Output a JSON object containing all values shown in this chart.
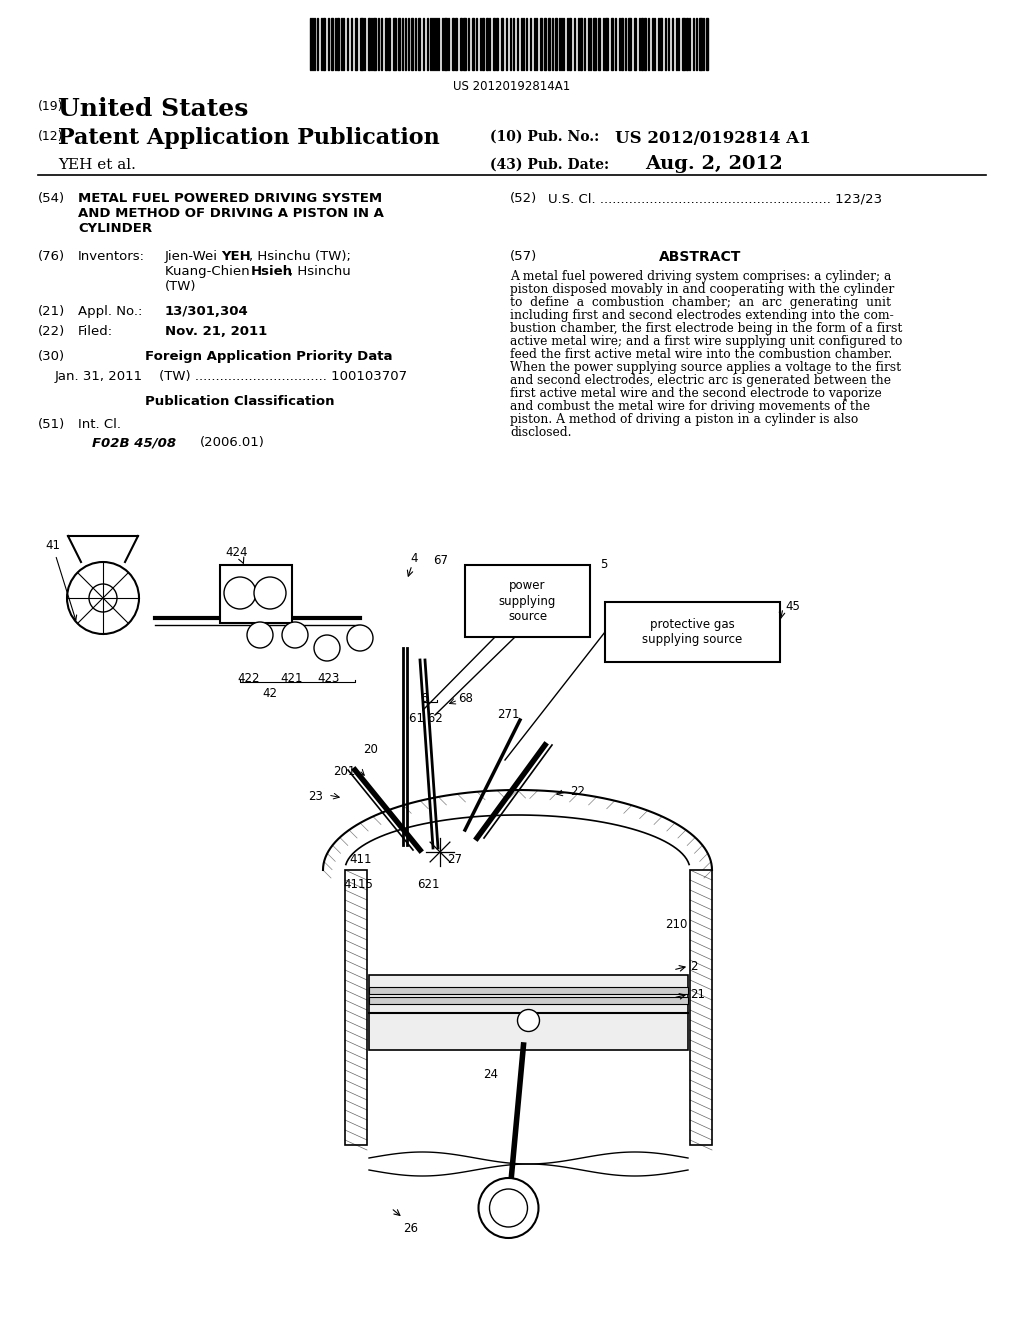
{
  "background_color": "#ffffff",
  "barcode_text": "US 20120192814A1",
  "page_number_label": "(19)",
  "country": "United States",
  "pub_type_label": "(12)",
  "pub_type": "Patent Application Publication",
  "pub_no_label": "(10) Pub. No.:",
  "pub_no": "US 2012/0192814 A1",
  "author": "YEH et al.",
  "pub_date_label": "(43) Pub. Date:",
  "pub_date": "Aug. 2, 2012",
  "title_label": "(54)",
  "title_line1": "METAL FUEL POWERED DRIVING SYSTEM",
  "title_line2": "AND METHOD OF DRIVING A PISTON IN A",
  "title_line3": "CYLINDER",
  "us_cl_label": "(52)",
  "us_cl_text": "U.S. Cl. ........................................................ 123/23",
  "inventors_label": "(76)",
  "inventors_head": "Inventors:",
  "appl_label": "(21)",
  "appl_head": "Appl. No.:",
  "appl_no": "13/301,304",
  "filed_label": "(22)",
  "filed_head": "Filed:",
  "filed_date": "Nov. 21, 2011",
  "foreign_label": "(30)",
  "foreign_title": "Foreign Application Priority Data",
  "foreign_entry": "Jan. 31, 2011    (TW) ................................ 100103707",
  "pub_class_title": "Publication Classification",
  "int_cl_label": "(51)",
  "int_cl_head": "Int. Cl.",
  "int_cl_code": "F02B 45/08",
  "int_cl_year": "(2006.01)",
  "abstract_label": "(57)",
  "abstract_title": "ABSTRACT",
  "abstract_lines": [
    "A metal fuel powered driving system comprises: a cylinder; a",
    "piston disposed movably in and cooperating with the cylinder",
    "to  define  a  combustion  chamber;  an  arc  generating  unit",
    "including first and second electrodes extending into the com-",
    "bustion chamber, the first electrode being in the form of a first",
    "active metal wire; and a first wire supplying unit configured to",
    "feed the first active metal wire into the combustion chamber.",
    "When the power supplying source applies a voltage to the first",
    "and second electrodes, electric arc is generated between the",
    "first active metal wire and the second electrode to vaporize",
    "and combust the metal wire for driving movements of the",
    "piston. A method of driving a piston in a cylinder is also",
    "disclosed."
  ]
}
